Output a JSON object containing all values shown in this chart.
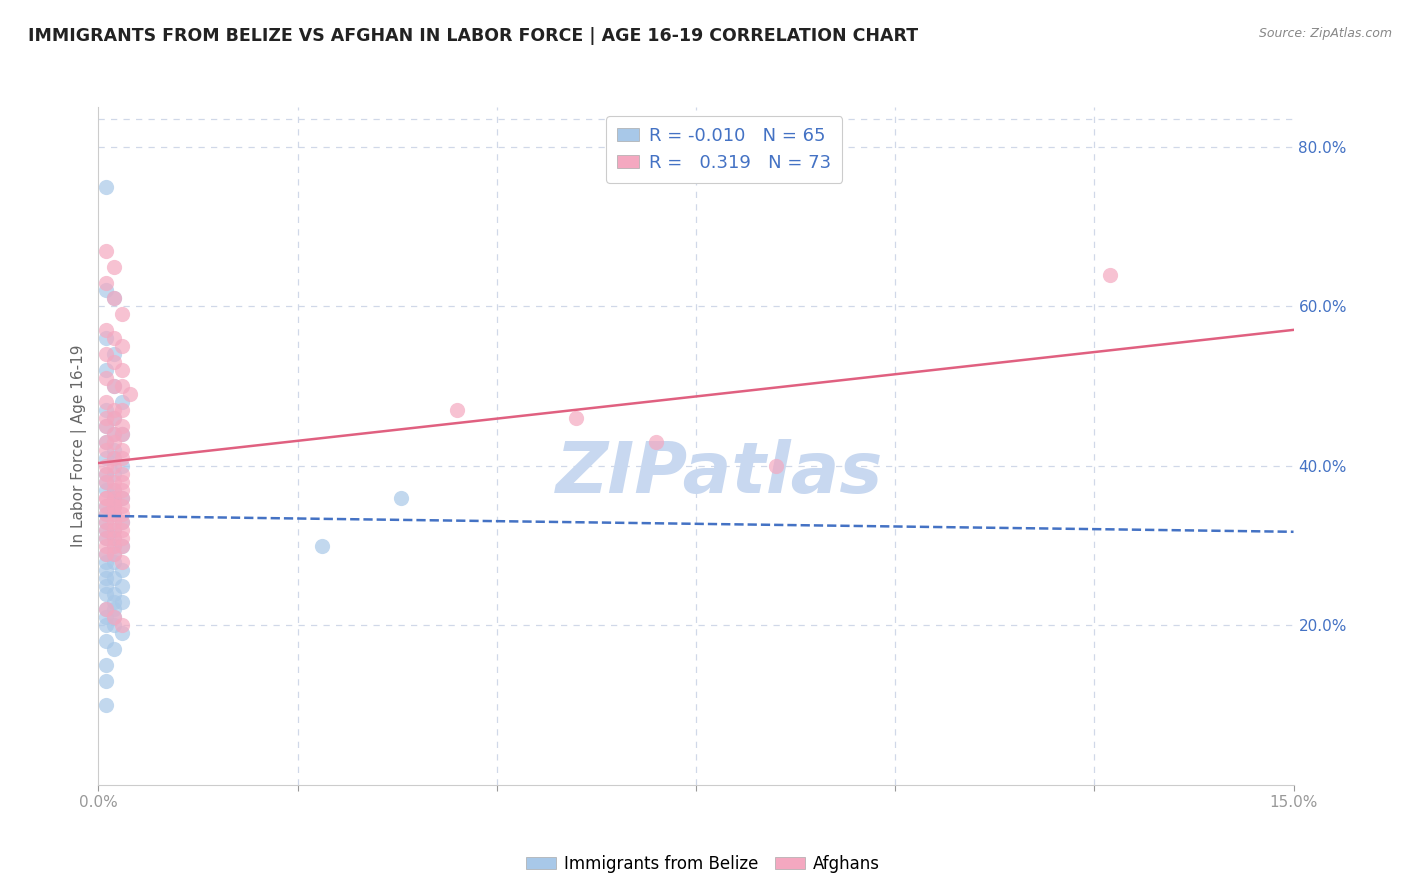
{
  "title": "IMMIGRANTS FROM BELIZE VS AFGHAN IN LABOR FORCE | AGE 16-19 CORRELATION CHART",
  "source": "Source: ZipAtlas.com",
  "ylabel": "In Labor Force | Age 16-19",
  "x_min": 0.0,
  "x_max": 0.15,
  "y_min": 0.0,
  "y_max": 0.85,
  "belize_color": "#a8c8e8",
  "afghan_color": "#f4a8c0",
  "belize_line_color": "#4472c4",
  "afghan_line_color": "#e06080",
  "legend_color": "#4472c4",
  "belize_R": "-0.010",
  "belize_N": "65",
  "afghan_R": "0.319",
  "afghan_N": "73",
  "legend_label_belize": "Immigrants from Belize",
  "legend_label_afghan": "Afghans",
  "watermark_text": "ZIPatlas",
  "watermark_color": "#c8d8f0",
  "background_color": "#ffffff",
  "grid_color": "#d0d8e8",
  "belize_x": [
    0.001,
    0.001,
    0.002,
    0.001,
    0.002,
    0.001,
    0.002,
    0.003,
    0.001,
    0.002,
    0.001,
    0.002,
    0.003,
    0.001,
    0.002,
    0.001,
    0.002,
    0.003,
    0.001,
    0.002,
    0.001,
    0.002,
    0.001,
    0.002,
    0.003,
    0.001,
    0.002,
    0.001,
    0.002,
    0.003,
    0.001,
    0.002,
    0.001,
    0.002,
    0.001,
    0.002,
    0.003,
    0.001,
    0.002,
    0.001,
    0.002,
    0.001,
    0.003,
    0.001,
    0.002,
    0.003,
    0.001,
    0.002,
    0.001,
    0.002,
    0.003,
    0.001,
    0.002,
    0.001,
    0.002,
    0.001,
    0.002,
    0.003,
    0.001,
    0.002,
    0.001,
    0.038,
    0.001,
    0.028,
    0.001
  ],
  "belize_y": [
    0.75,
    0.62,
    0.61,
    0.56,
    0.54,
    0.52,
    0.5,
    0.48,
    0.47,
    0.46,
    0.45,
    0.44,
    0.44,
    0.43,
    0.42,
    0.41,
    0.41,
    0.4,
    0.39,
    0.39,
    0.38,
    0.37,
    0.37,
    0.36,
    0.36,
    0.35,
    0.35,
    0.34,
    0.34,
    0.33,
    0.33,
    0.32,
    0.32,
    0.31,
    0.31,
    0.3,
    0.3,
    0.29,
    0.29,
    0.28,
    0.28,
    0.27,
    0.27,
    0.26,
    0.26,
    0.25,
    0.25,
    0.24,
    0.24,
    0.23,
    0.23,
    0.22,
    0.22,
    0.21,
    0.21,
    0.2,
    0.2,
    0.19,
    0.18,
    0.17,
    0.15,
    0.36,
    0.13,
    0.3,
    0.1
  ],
  "afghan_x": [
    0.001,
    0.002,
    0.001,
    0.002,
    0.003,
    0.001,
    0.002,
    0.003,
    0.001,
    0.002,
    0.003,
    0.001,
    0.002,
    0.003,
    0.004,
    0.001,
    0.002,
    0.003,
    0.001,
    0.002,
    0.003,
    0.001,
    0.002,
    0.003,
    0.001,
    0.002,
    0.003,
    0.001,
    0.002,
    0.003,
    0.001,
    0.002,
    0.003,
    0.001,
    0.002,
    0.003,
    0.001,
    0.002,
    0.003,
    0.001,
    0.002,
    0.003,
    0.001,
    0.002,
    0.003,
    0.001,
    0.002,
    0.003,
    0.001,
    0.002,
    0.003,
    0.001,
    0.002,
    0.003,
    0.001,
    0.002,
    0.003,
    0.001,
    0.002,
    0.003,
    0.001,
    0.002,
    0.003,
    0.001,
    0.002,
    0.003,
    0.001,
    0.002,
    0.045,
    0.127,
    0.06,
    0.07,
    0.085
  ],
  "afghan_y": [
    0.67,
    0.65,
    0.63,
    0.61,
    0.59,
    0.57,
    0.56,
    0.55,
    0.54,
    0.53,
    0.52,
    0.51,
    0.5,
    0.5,
    0.49,
    0.48,
    0.47,
    0.47,
    0.46,
    0.46,
    0.45,
    0.45,
    0.44,
    0.44,
    0.43,
    0.43,
    0.42,
    0.42,
    0.41,
    0.41,
    0.4,
    0.4,
    0.39,
    0.39,
    0.38,
    0.38,
    0.38,
    0.37,
    0.37,
    0.36,
    0.36,
    0.36,
    0.35,
    0.35,
    0.35,
    0.34,
    0.34,
    0.34,
    0.33,
    0.33,
    0.33,
    0.32,
    0.32,
    0.32,
    0.31,
    0.31,
    0.31,
    0.3,
    0.3,
    0.3,
    0.29,
    0.29,
    0.28,
    0.22,
    0.21,
    0.2,
    0.36,
    0.35,
    0.47,
    0.64,
    0.46,
    0.43,
    0.4
  ]
}
